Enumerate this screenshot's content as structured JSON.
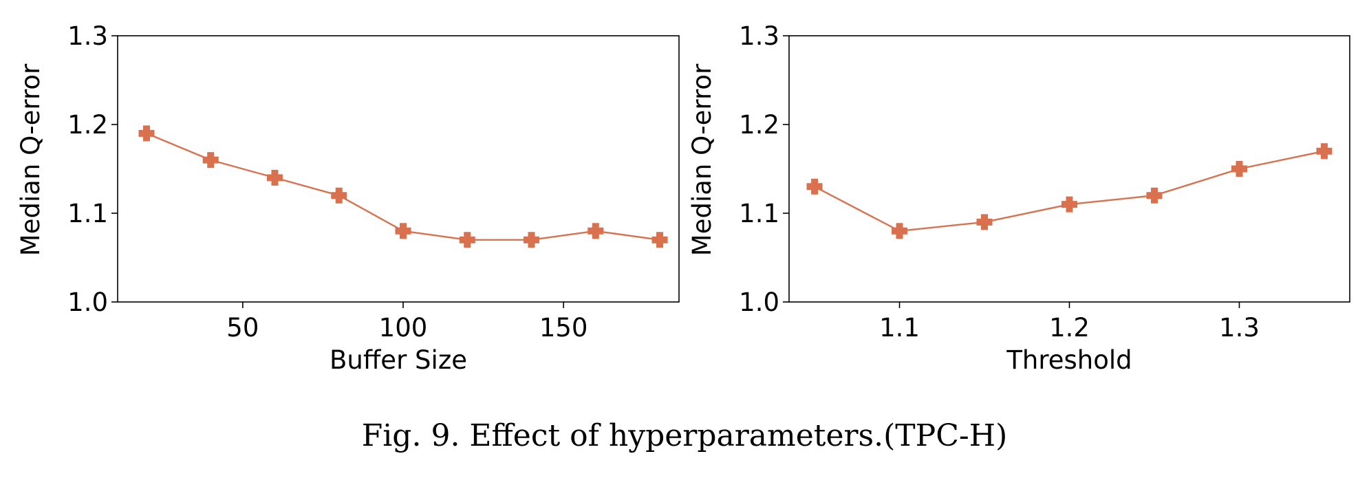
{
  "colors": {
    "series": "#d9714f",
    "axis": "#000000",
    "background": "#ffffff"
  },
  "caption": "Fig. 9.  Effect of hyperparameters.(TPC-H)",
  "chart_data": [
    {
      "type": "line",
      "title": "",
      "xlabel": "Buffer Size",
      "ylabel": "Median Q-error",
      "xlim": [
        11,
        186
      ],
      "ylim": [
        1.0,
        1.3
      ],
      "xticks": [
        50,
        100,
        150
      ],
      "yticks": [
        1.0,
        1.1,
        1.2,
        1.3
      ],
      "xtick_labels": [
        "50",
        "100",
        "150"
      ],
      "ytick_labels": [
        "1.0",
        "1.1",
        "1.2",
        "1.3"
      ],
      "marker": "plus-filled",
      "series": [
        {
          "name": "Median Q-error",
          "x": [
            20,
            40,
            60,
            80,
            100,
            120,
            140,
            160,
            180
          ],
          "y": [
            1.19,
            1.16,
            1.14,
            1.12,
            1.08,
            1.07,
            1.07,
            1.08,
            1.07
          ]
        }
      ]
    },
    {
      "type": "line",
      "title": "",
      "xlabel": "Threshold",
      "ylabel": "Median Q-error",
      "xlim": [
        1.035,
        1.365
      ],
      "ylim": [
        1.0,
        1.3
      ],
      "xticks": [
        1.1,
        1.2,
        1.3
      ],
      "yticks": [
        1.0,
        1.1,
        1.2,
        1.3
      ],
      "xtick_labels": [
        "1.1",
        "1.2",
        "1.3"
      ],
      "ytick_labels": [
        "1.0",
        "1.1",
        "1.2",
        "1.3"
      ],
      "marker": "plus-filled",
      "series": [
        {
          "name": "Median Q-error",
          "x": [
            1.05,
            1.1,
            1.15,
            1.2,
            1.25,
            1.3,
            1.35
          ],
          "y": [
            1.13,
            1.08,
            1.09,
            1.11,
            1.12,
            1.15,
            1.17
          ]
        }
      ]
    }
  ]
}
